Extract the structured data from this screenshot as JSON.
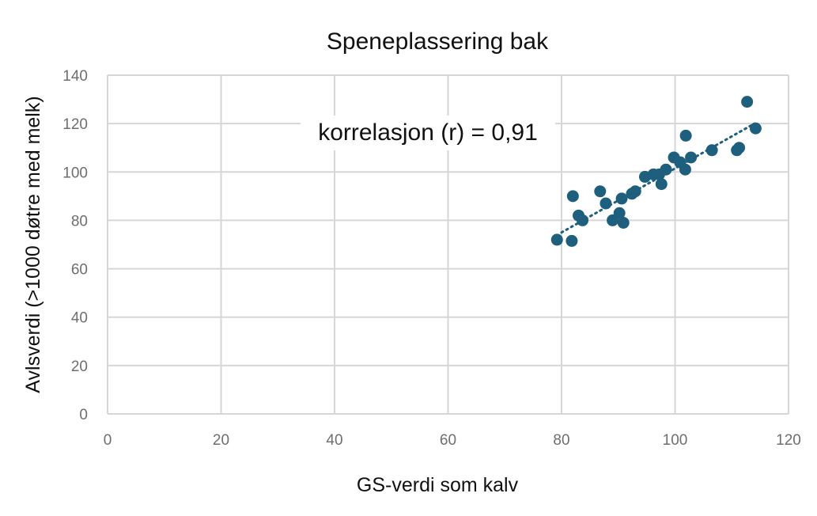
{
  "chart_data": {
    "type": "scatter",
    "title": "Speneplassering bak",
    "xlabel": "GS-verdi som kalv",
    "ylabel": "Avlsverdi (>1000 døtre med melk)",
    "annotation": "korrelasjon (r) = 0,91",
    "xlim": [
      0,
      120
    ],
    "ylim": [
      0,
      140
    ],
    "xticks": [
      "0",
      "20",
      "40",
      "60",
      "80",
      "100",
      "120"
    ],
    "yticks": [
      "0",
      "20",
      "40",
      "60",
      "80",
      "100",
      "120",
      "140"
    ],
    "grid": true,
    "trendline": {
      "style": "dotted",
      "x_start": 80,
      "y_start": 75,
      "x_end": 114,
      "y_end": 120
    },
    "points": [
      {
        "x": 79.2,
        "y": 72
      },
      {
        "x": 81.8,
        "y": 71.5
      },
      {
        "x": 82,
        "y": 90
      },
      {
        "x": 83,
        "y": 82
      },
      {
        "x": 83.7,
        "y": 80
      },
      {
        "x": 86.8,
        "y": 92
      },
      {
        "x": 87.8,
        "y": 87
      },
      {
        "x": 89,
        "y": 80
      },
      {
        "x": 90.2,
        "y": 83
      },
      {
        "x": 90.6,
        "y": 89
      },
      {
        "x": 90.9,
        "y": 79
      },
      {
        "x": 92.4,
        "y": 91
      },
      {
        "x": 93,
        "y": 92
      },
      {
        "x": 94.7,
        "y": 98
      },
      {
        "x": 96.2,
        "y": 99
      },
      {
        "x": 97.2,
        "y": 99
      },
      {
        "x": 97.6,
        "y": 95
      },
      {
        "x": 98.4,
        "y": 101
      },
      {
        "x": 99.8,
        "y": 106
      },
      {
        "x": 100.9,
        "y": 104
      },
      {
        "x": 101.8,
        "y": 101
      },
      {
        "x": 101.9,
        "y": 115
      },
      {
        "x": 102.8,
        "y": 106
      },
      {
        "x": 106.5,
        "y": 109
      },
      {
        "x": 110.9,
        "y": 109
      },
      {
        "x": 111.3,
        "y": 110
      },
      {
        "x": 112.7,
        "y": 129
      },
      {
        "x": 114.2,
        "y": 118
      }
    ]
  },
  "colors": {
    "marker": "#1e5f7d",
    "trendline": "#1e5f7d",
    "grid": "#d6d6d6",
    "tick_text": "#6e6e6e",
    "text": "#111111"
  }
}
